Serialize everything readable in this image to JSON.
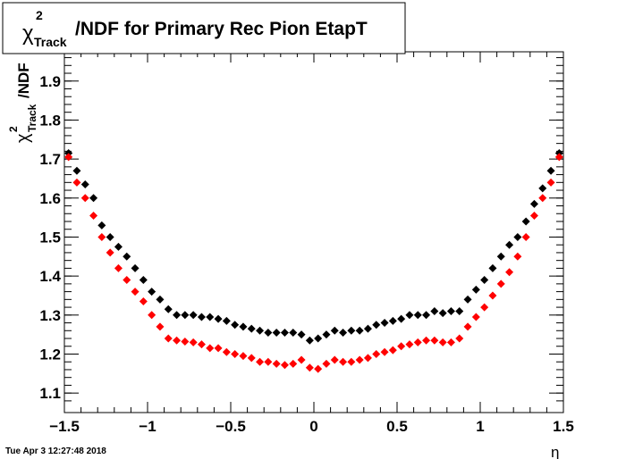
{
  "chart_data": {
    "type": "scatter",
    "title": {
      "symbol": "χ",
      "sup": "2",
      "sub": "Track",
      "rest": "/NDF for Primary Rec Pion EtapT"
    },
    "y_label": {
      "symbol": "χ",
      "sup": "2",
      "sub": "Track",
      "rest": "/NDF"
    },
    "x_label": "η",
    "timestamp": "Tue Apr  3 12:27:48 2018",
    "xlim": [
      -1.5,
      1.5
    ],
    "ylim": [
      1.05,
      1.975
    ],
    "xticks": [
      {
        "value": -1.5,
        "label": "−1.5"
      },
      {
        "value": -1,
        "label": "−1"
      },
      {
        "value": -0.5,
        "label": "−0.5"
      },
      0,
      0.5,
      1,
      1.5
    ],
    "yticks": [
      1.1,
      1.2,
      1.3,
      1.4,
      1.5,
      1.6,
      1.7,
      1.8,
      1.9
    ],
    "x": [
      -1.475,
      -1.425,
      -1.375,
      -1.325,
      -1.275,
      -1.225,
      -1.175,
      -1.125,
      -1.075,
      -1.025,
      -0.975,
      -0.925,
      -0.875,
      -0.825,
      -0.775,
      -0.725,
      -0.675,
      -0.625,
      -0.575,
      -0.525,
      -0.475,
      -0.425,
      -0.375,
      -0.325,
      -0.275,
      -0.225,
      -0.175,
      -0.125,
      -0.075,
      -0.025,
      0.025,
      0.075,
      0.125,
      0.175,
      0.225,
      0.275,
      0.325,
      0.375,
      0.425,
      0.475,
      0.525,
      0.575,
      0.625,
      0.675,
      0.725,
      0.775,
      0.825,
      0.875,
      0.925,
      0.975,
      1.025,
      1.075,
      1.125,
      1.175,
      1.225,
      1.275,
      1.325,
      1.375,
      1.425,
      1.475
    ],
    "series": [
      {
        "color": "#000000",
        "values": [
          1.715,
          1.67,
          1.635,
          1.6,
          1.53,
          1.5,
          1.475,
          1.45,
          1.42,
          1.39,
          1.36,
          1.34,
          1.315,
          1.3,
          1.3,
          1.3,
          1.295,
          1.295,
          1.29,
          1.285,
          1.275,
          1.27,
          1.265,
          1.26,
          1.255,
          1.255,
          1.255,
          1.255,
          1.25,
          1.235,
          1.24,
          1.25,
          1.26,
          1.255,
          1.26,
          1.26,
          1.265,
          1.275,
          1.28,
          1.285,
          1.29,
          1.3,
          1.3,
          1.3,
          1.31,
          1.305,
          1.31,
          1.31,
          1.34,
          1.365,
          1.39,
          1.42,
          1.45,
          1.48,
          1.5,
          1.54,
          1.585,
          1.625,
          1.67,
          1.715
        ]
      },
      {
        "color": "#ff0000",
        "values": [
          1.705,
          1.64,
          1.6,
          1.555,
          1.5,
          1.46,
          1.42,
          1.39,
          1.36,
          1.335,
          1.3,
          1.27,
          1.24,
          1.235,
          1.232,
          1.23,
          1.225,
          1.215,
          1.215,
          1.205,
          1.2,
          1.195,
          1.19,
          1.18,
          1.18,
          1.175,
          1.172,
          1.175,
          1.185,
          1.165,
          1.162,
          1.175,
          1.185,
          1.18,
          1.18,
          1.185,
          1.19,
          1.2,
          1.205,
          1.21,
          1.22,
          1.225,
          1.23,
          1.235,
          1.235,
          1.23,
          1.23,
          1.24,
          1.27,
          1.295,
          1.32,
          1.35,
          1.38,
          1.41,
          1.45,
          1.5,
          1.555,
          1.6,
          1.64,
          1.705
        ]
      }
    ]
  }
}
